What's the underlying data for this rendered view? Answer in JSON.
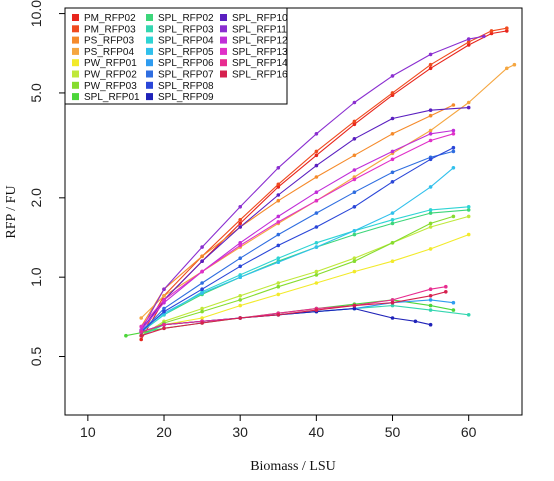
{
  "chart_data": {
    "type": "scatter",
    "xlabel": "Biomass / LSU",
    "ylabel": "RFP / FU",
    "xlim": [
      7,
      67
    ],
    "ylim": [
      0.3,
      10.5
    ],
    "yscale": "log",
    "x_ticks": [
      10,
      20,
      30,
      40,
      50,
      60
    ],
    "x_tick_labels": [
      "10",
      "20",
      "30",
      "40",
      "50",
      "60"
    ],
    "y_ticks": [
      0.5,
      1.0,
      2.0,
      5.0,
      10.0
    ],
    "y_tick_labels": [
      "0.5",
      "1.0",
      "2.0",
      "5.0",
      "10.0"
    ],
    "grid": false,
    "legend_position": "top-left",
    "series": [
      {
        "name": "PM_RFP02",
        "color": "#e8251c",
        "x": [
          17,
          20,
          25,
          30,
          35,
          40,
          45,
          50,
          55,
          60,
          63,
          65
        ],
        "y": [
          0.58,
          0.82,
          1.15,
          1.6,
          2.2,
          2.9,
          3.8,
          4.9,
          6.2,
          7.6,
          8.4,
          8.6
        ]
      },
      {
        "name": "PM_RFP03",
        "color": "#f04a1e",
        "x": [
          17,
          20,
          25,
          30,
          35,
          40,
          45,
          50,
          55,
          60,
          63,
          65
        ],
        "y": [
          0.6,
          0.85,
          1.2,
          1.65,
          2.25,
          3.0,
          3.9,
          5.0,
          6.4,
          7.8,
          8.6,
          8.8
        ]
      },
      {
        "name": "PS_RFP03",
        "color": "#f58a2a",
        "x": [
          17,
          20,
          25,
          30,
          35,
          40,
          45,
          50,
          55,
          58
        ],
        "y": [
          0.65,
          0.9,
          1.2,
          1.55,
          1.95,
          2.4,
          2.9,
          3.5,
          4.1,
          4.5
        ]
      },
      {
        "name": "PS_RFP04",
        "color": "#f5a640",
        "x": [
          17,
          20,
          25,
          30,
          35,
          40,
          45,
          50,
          55,
          60,
          65,
          66
        ],
        "y": [
          0.7,
          0.85,
          1.05,
          1.3,
          1.6,
          1.95,
          2.4,
          2.95,
          3.6,
          4.6,
          6.2,
          6.4
        ]
      },
      {
        "name": "PW_RFP01",
        "color": "#f2ea2a",
        "x": [
          20,
          25,
          30,
          35,
          40,
          45,
          50,
          55,
          60
        ],
        "y": [
          0.66,
          0.7,
          0.78,
          0.86,
          0.95,
          1.05,
          1.15,
          1.28,
          1.45
        ]
      },
      {
        "name": "PW_RFP02",
        "color": "#bfe83a",
        "x": [
          17,
          20,
          25,
          30,
          35,
          40,
          45,
          50,
          55,
          60
        ],
        "y": [
          0.6,
          0.68,
          0.76,
          0.85,
          0.95,
          1.05,
          1.18,
          1.35,
          1.55,
          1.7
        ]
      },
      {
        "name": "PW_RFP03",
        "color": "#86dc2e",
        "x": [
          17,
          20,
          25,
          30,
          35,
          40,
          45,
          50,
          55,
          58
        ],
        "y": [
          0.6,
          0.67,
          0.74,
          0.82,
          0.92,
          1.02,
          1.15,
          1.35,
          1.6,
          1.7
        ]
      },
      {
        "name": "SPL_RFP01",
        "color": "#4cd63a",
        "x": [
          15,
          20,
          25,
          30,
          35,
          40,
          45,
          50,
          55,
          58
        ],
        "y": [
          0.6,
          0.64,
          0.67,
          0.7,
          0.73,
          0.76,
          0.79,
          0.82,
          0.78,
          0.75
        ]
      },
      {
        "name": "SPL_RFP02",
        "color": "#3cd67a",
        "x": [
          17,
          20,
          25,
          30,
          35,
          40,
          45,
          50,
          55,
          60
        ],
        "y": [
          0.62,
          0.72,
          0.86,
          1.0,
          1.15,
          1.3,
          1.45,
          1.6,
          1.75,
          1.8
        ]
      },
      {
        "name": "SPL_RFP03",
        "color": "#34d6b0",
        "x": [
          17,
          20,
          25,
          30,
          35,
          40,
          45,
          50,
          55,
          60
        ],
        "y": [
          0.6,
          0.66,
          0.68,
          0.7,
          0.72,
          0.74,
          0.76,
          0.78,
          0.75,
          0.72
        ]
      },
      {
        "name": "SPL_RFP04",
        "color": "#2ed4d4",
        "x": [
          17,
          20,
          25,
          30,
          35,
          40,
          45,
          50,
          55,
          60
        ],
        "y": [
          0.62,
          0.72,
          0.88,
          1.02,
          1.18,
          1.35,
          1.5,
          1.65,
          1.8,
          1.85
        ]
      },
      {
        "name": "SPL_RFP05",
        "color": "#30c0ec",
        "x": [
          17,
          20,
          25,
          30,
          35,
          40,
          45,
          50,
          55,
          58
        ],
        "y": [
          0.63,
          0.73,
          0.87,
          1.0,
          1.14,
          1.3,
          1.5,
          1.75,
          2.2,
          2.6
        ]
      },
      {
        "name": "SPL_RFP06",
        "color": "#2f9cf0",
        "x": [
          17,
          20,
          25,
          30,
          35,
          40,
          45,
          50,
          55,
          58
        ],
        "y": [
          0.62,
          0.66,
          0.68,
          0.7,
          0.72,
          0.74,
          0.76,
          0.8,
          0.82,
          0.8
        ]
      },
      {
        "name": "SPL_RFP07",
        "color": "#2f6ee0",
        "x": [
          17,
          20,
          25,
          30,
          35,
          40,
          45,
          50,
          55,
          58
        ],
        "y": [
          0.62,
          0.76,
          0.95,
          1.18,
          1.45,
          1.75,
          2.1,
          2.5,
          2.85,
          3.0
        ]
      },
      {
        "name": "SPL_RFP08",
        "color": "#2a46d8",
        "x": [
          17,
          20,
          25,
          30,
          35,
          40,
          45,
          50,
          55,
          58
        ],
        "y": [
          0.62,
          0.74,
          0.9,
          1.1,
          1.32,
          1.55,
          1.85,
          2.3,
          2.8,
          3.1
        ]
      },
      {
        "name": "SPL_RFP09",
        "color": "#1f22b8",
        "x": [
          17,
          20,
          25,
          30,
          35,
          40,
          45,
          50,
          53,
          55
        ],
        "y": [
          0.62,
          0.66,
          0.68,
          0.7,
          0.72,
          0.74,
          0.76,
          0.7,
          0.68,
          0.66
        ]
      },
      {
        "name": "SPL_RFP10",
        "color": "#5a1fc0",
        "x": [
          17,
          20,
          25,
          30,
          35,
          40,
          45,
          50,
          55,
          60
        ],
        "y": [
          0.63,
          0.82,
          1.15,
          1.55,
          2.05,
          2.65,
          3.35,
          4.0,
          4.3,
          4.4
        ]
      },
      {
        "name": "SPL_RFP11",
        "color": "#8a2ed0",
        "x": [
          17,
          20,
          25,
          30,
          35,
          40,
          45,
          50,
          55,
          60,
          62
        ],
        "y": [
          0.63,
          0.9,
          1.3,
          1.85,
          2.6,
          3.5,
          4.6,
          5.8,
          7.0,
          8.0,
          8.2
        ]
      },
      {
        "name": "SPL_RFP12",
        "color": "#c02ed8",
        "x": [
          17,
          20,
          25,
          30,
          35,
          40,
          45,
          50,
          55,
          58
        ],
        "y": [
          0.63,
          0.8,
          1.05,
          1.35,
          1.7,
          2.1,
          2.55,
          3.0,
          3.5,
          3.6
        ]
      },
      {
        "name": "SPL_RFP13",
        "color": "#e030c8",
        "x": [
          17,
          20,
          25,
          30,
          35,
          40,
          45,
          50,
          55,
          58
        ],
        "y": [
          0.65,
          0.82,
          1.05,
          1.32,
          1.62,
          1.95,
          2.35,
          2.8,
          3.3,
          3.5
        ]
      },
      {
        "name": "SPL_RFP14",
        "color": "#e82c90",
        "x": [
          17,
          20,
          25,
          30,
          35,
          40,
          45,
          50,
          55,
          57
        ],
        "y": [
          0.62,
          0.66,
          0.68,
          0.7,
          0.73,
          0.76,
          0.78,
          0.82,
          0.9,
          0.92
        ]
      },
      {
        "name": "SPL_RFP16",
        "color": "#d6204e",
        "x": [
          17,
          20,
          25,
          30,
          35,
          40,
          45,
          50,
          55,
          57
        ],
        "y": [
          0.6,
          0.64,
          0.67,
          0.7,
          0.72,
          0.75,
          0.78,
          0.8,
          0.85,
          0.88
        ]
      }
    ]
  }
}
